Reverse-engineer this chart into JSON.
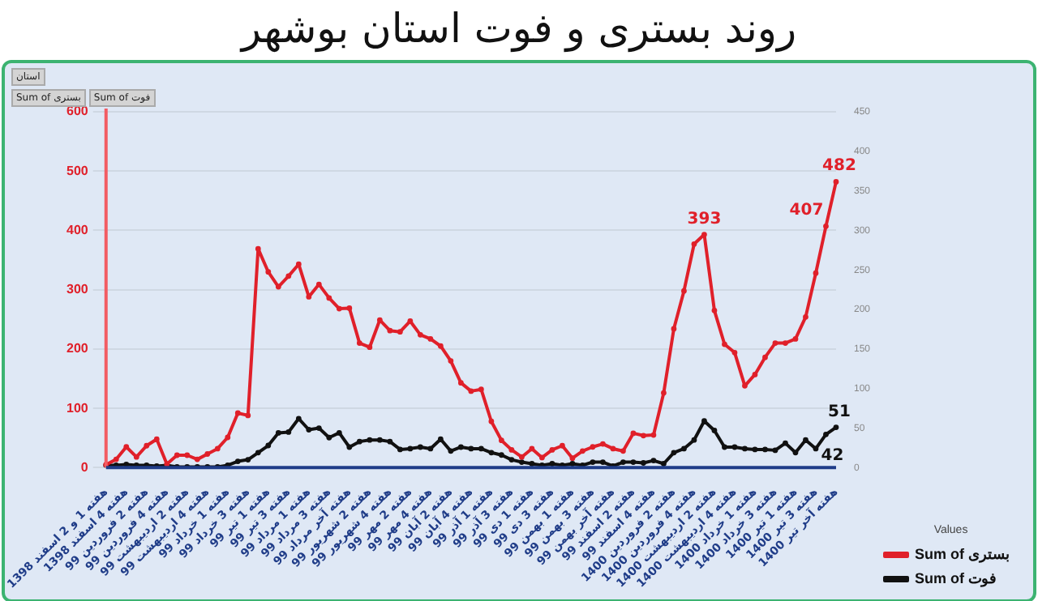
{
  "chart_data": {
    "type": "line",
    "title": "روند بستری و فوت استان بوشهر",
    "annotations": [
      "استان",
      "Sum of بستری",
      "Sum of فوت"
    ],
    "categories": [
      "هفته 1 و 2 اسفند 1398",
      null,
      "هفته 4 اسفند 1398",
      null,
      "هفته 2 فروردین 99",
      null,
      "هفته 4 فروردین 99",
      null,
      "هفته 2 اردیبهشت 99",
      null,
      "هفته 4 اردیبهشت 99",
      null,
      "هفته 1 خرداد 99",
      null,
      "هفته 3 خرداد 99",
      null,
      "هفته 1 تیر 99",
      null,
      "هفته 3 تیر 99",
      null,
      "هفته 1 مرداد 99",
      null,
      "هفته 3 مرداد 99",
      null,
      "هفته آخر مرداد 99",
      null,
      "هفته 2 شهریور 99",
      null,
      "هفته 4 شهریور 99",
      null,
      "هفته 2 مهر 99",
      null,
      "هفته 4 مهر 99",
      null,
      "هفته 2 آبان 99",
      null,
      "هفته 4 آبان 99",
      null,
      "هفته 1 آذر 99",
      null,
      "هفته 3 آذر 99",
      null,
      "هفته 1 دی 99",
      null,
      "هفته 3 دی 99",
      null,
      "هفته 1 بهمن 99",
      null,
      "هفته 3 بهمن 99",
      null,
      "هفته آخر بهمن 99",
      null,
      "هفته 2 اسفند 99",
      null,
      "هفته 4 اسفند 99",
      null,
      "هفته 2 فروردین 1400",
      null,
      "هفته 4 فروردین 1400",
      null,
      "هفته 2 اردیبهشت 1400",
      null,
      "هفته 4 اردیبهشت 1400",
      null,
      "هفته 1 خرداد 1400",
      null,
      "هفته 3 خرداد 1400",
      null,
      "هفته 1 تیر 1400",
      null,
      "هفته 3 تیر 1400",
      null,
      "هفته آخر تیر 1400"
    ],
    "series": [
      {
        "name": "Sum of بستری",
        "color": "#e0202a",
        "values": [
          5,
          14,
          35,
          18,
          37,
          48,
          6,
          21,
          21,
          14,
          23,
          32,
          51,
          92,
          88,
          369,
          330,
          305,
          323,
          343,
          288,
          309,
          286,
          268,
          269,
          210,
          203,
          249,
          231,
          229,
          247,
          224,
          217,
          205,
          180,
          143,
          129,
          132,
          78,
          46,
          30,
          18,
          32,
          17,
          30,
          37,
          16,
          28,
          35,
          40,
          32,
          28,
          58,
          54,
          55,
          126,
          234,
          298,
          377,
          393,
          265,
          208,
          194,
          138,
          157,
          186,
          210,
          210,
          217,
          254,
          328,
          407,
          482
        ],
        "value_labels": [
          null,
          null,
          null,
          null,
          null,
          null,
          null,
          null,
          null,
          null,
          null,
          null,
          null,
          null,
          null,
          null,
          null,
          null,
          null,
          null,
          null,
          null,
          null,
          null,
          null,
          null,
          null,
          null,
          null,
          null,
          null,
          null,
          null,
          null,
          null,
          null,
          null,
          null,
          null,
          null,
          null,
          null,
          null,
          null,
          null,
          null,
          null,
          null,
          null,
          null,
          null,
          null,
          null,
          null,
          null,
          null,
          null,
          null,
          null,
          "393",
          null,
          null,
          null,
          null,
          null,
          null,
          null,
          null,
          null,
          null,
          null,
          "407",
          "482"
        ]
      },
      {
        "name": "Sum of فوت",
        "color": "#111111",
        "axis": "y2",
        "values": [
          3,
          3,
          4,
          3,
          3,
          2,
          3,
          1,
          1,
          1,
          1,
          1,
          3,
          8,
          10,
          19,
          28,
          44,
          45,
          62,
          48,
          50,
          38,
          44,
          26,
          33,
          35,
          35,
          33,
          23,
          24,
          26,
          24,
          36,
          21,
          26,
          24,
          24,
          19,
          16,
          10,
          7,
          5,
          3,
          5,
          3,
          5,
          3,
          7,
          7,
          2,
          7,
          7,
          6,
          9,
          5,
          19,
          24,
          35,
          59,
          47,
          26,
          26,
          24,
          23,
          23,
          22,
          31,
          19,
          35,
          24,
          42,
          51
        ],
        "value_labels": [
          null,
          null,
          null,
          null,
          null,
          null,
          null,
          null,
          null,
          null,
          null,
          null,
          null,
          null,
          null,
          null,
          null,
          null,
          null,
          null,
          null,
          null,
          null,
          null,
          null,
          null,
          null,
          null,
          null,
          null,
          null,
          null,
          null,
          null,
          null,
          null,
          null,
          null,
          null,
          null,
          null,
          null,
          null,
          null,
          null,
          null,
          null,
          null,
          null,
          null,
          null,
          null,
          null,
          null,
          null,
          null,
          null,
          null,
          null,
          null,
          null,
          null,
          null,
          null,
          null,
          null,
          null,
          null,
          null,
          null,
          null,
          "42",
          "51"
        ]
      }
    ],
    "ylim": [
      0,
      600
    ],
    "yticks": [
      0,
      100,
      200,
      300,
      400,
      500,
      600
    ],
    "y2lim": [
      0,
      450
    ],
    "y2ticks": [
      0,
      50,
      100,
      150,
      200,
      250,
      300,
      350,
      400,
      450
    ],
    "grid": "y",
    "legend": "bottom right",
    "legend_title": "Values",
    "marker": "circle",
    "line_style": "solid"
  }
}
